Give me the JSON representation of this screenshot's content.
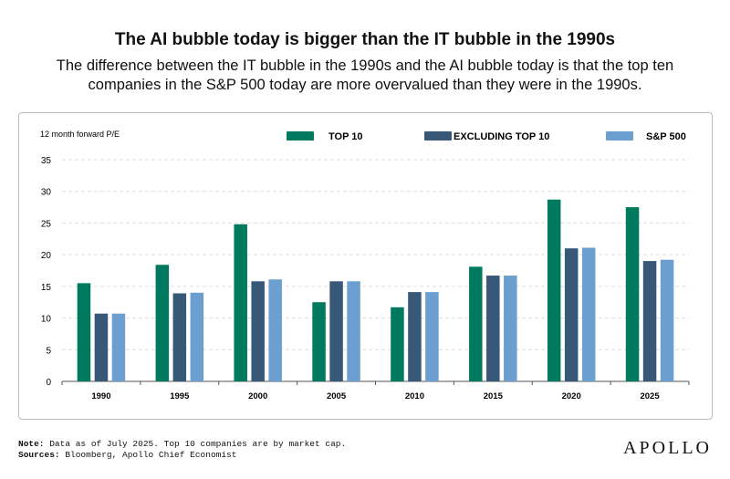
{
  "title": "The AI bubble today is bigger than the IT bubble in the 1990s",
  "subtitle": "The difference between the IT bubble in the 1990s and the AI bubble today is that the top ten companies in the S&P 500 today are more overvalued than they were in the 1990s.",
  "footer": {
    "note_label": "Note:",
    "note": "Data as of July 2025. Top 10 companies are by market cap.",
    "sources_label": "Sources:",
    "sources": "Bloomberg, Apollo Chief Economist"
  },
  "logo": "APOLLO",
  "chart_data": {
    "type": "bar",
    "ylabel": "12 month forward P/E",
    "ylim": [
      0,
      35
    ],
    "yticks": [
      0,
      5,
      10,
      15,
      20,
      25,
      30,
      35
    ],
    "grid": true,
    "legend_position": "top",
    "categories": [
      "1990",
      "1995",
      "2000",
      "2005",
      "2010",
      "2015",
      "2020",
      "2025"
    ],
    "series": [
      {
        "name": "TOP 10",
        "color": "#007a5e",
        "values": [
          15.5,
          18.4,
          24.8,
          12.5,
          11.7,
          18.1,
          28.7,
          27.5
        ]
      },
      {
        "name": "EXCLUDING TOP 10",
        "color": "#385878",
        "values": [
          10.7,
          13.9,
          15.8,
          15.8,
          14.1,
          16.7,
          21.0,
          19.0
        ]
      },
      {
        "name": "S&P 500",
        "color": "#6a9fd0",
        "values": [
          10.7,
          14.0,
          16.1,
          15.8,
          14.1,
          16.7,
          21.1,
          19.2
        ]
      }
    ]
  }
}
